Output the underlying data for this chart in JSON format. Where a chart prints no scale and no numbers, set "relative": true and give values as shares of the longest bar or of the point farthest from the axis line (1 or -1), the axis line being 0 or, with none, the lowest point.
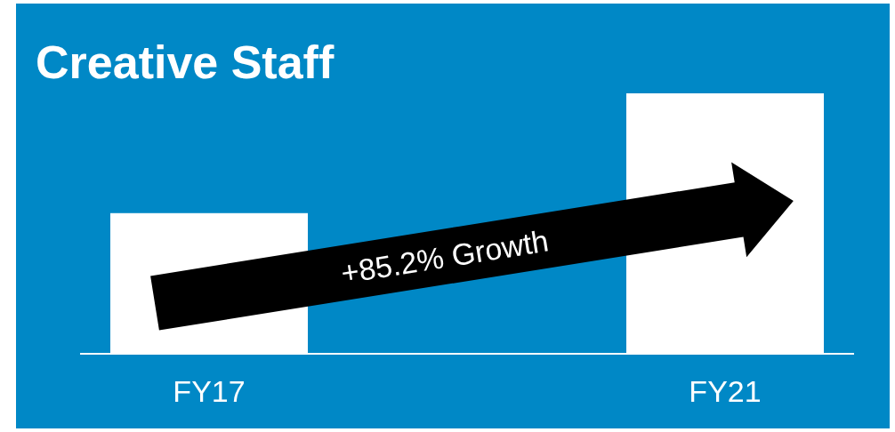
{
  "chart_data": {
    "type": "bar",
    "title": "Creative Staff",
    "relative": true,
    "categories": [
      "FY17",
      "FY21"
    ],
    "values": [
      0.54,
      1
    ],
    "color": "#ffffff",
    "annotations": [
      "+85.2% Growth"
    ]
  }
}
